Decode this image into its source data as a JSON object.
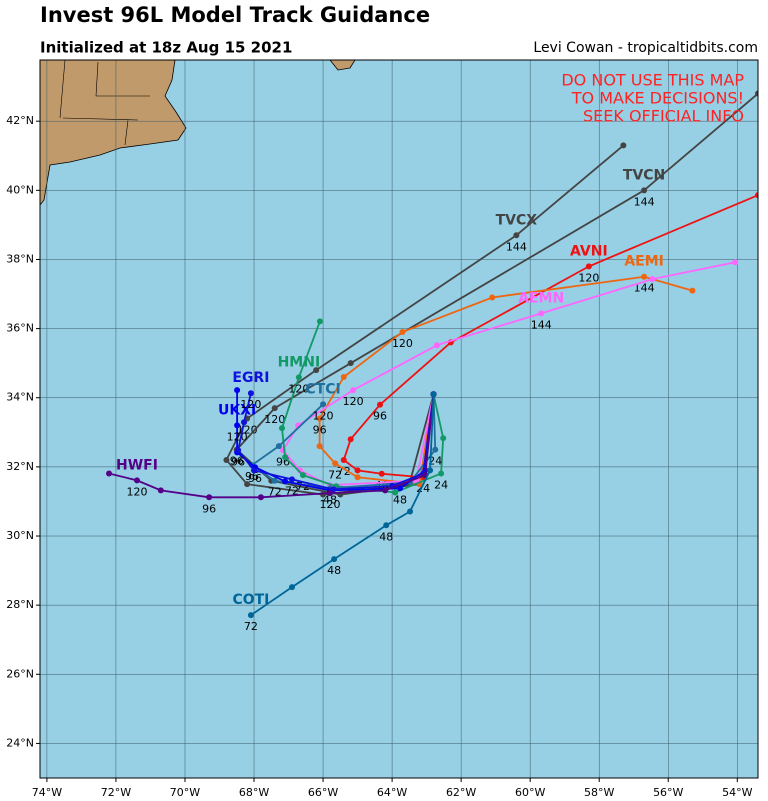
{
  "chart_data": {
    "type": "track-map",
    "title": "Invest 96L Model Track Guidance",
    "subtitle": "Initialized at 18z Aug 15 2021",
    "credit": "Levi Cowan - tropicaltidbits.com",
    "warning": [
      "DO NOT USE THIS MAP",
      "TO MAKE DECISIONS!",
      "SEEK OFFICIAL INFO"
    ],
    "xlim": [
      -74.2,
      -53.4
    ],
    "ylim": [
      23.0,
      43.77
    ],
    "xticks": [
      {
        "value": -74,
        "label": "74°W"
      },
      {
        "value": -72,
        "label": "72°W"
      },
      {
        "value": -70,
        "label": "70°W"
      },
      {
        "value": -68,
        "label": "68°W"
      },
      {
        "value": -66,
        "label": "66°W"
      },
      {
        "value": -64,
        "label": "64°W"
      },
      {
        "value": -62,
        "label": "62°W"
      },
      {
        "value": -60,
        "label": "60°W"
      },
      {
        "value": -58,
        "label": "58°W"
      },
      {
        "value": -56,
        "label": "56°W"
      },
      {
        "value": -54,
        "label": "54°W"
      }
    ],
    "yticks": [
      {
        "value": 24,
        "label": "24°N"
      },
      {
        "value": 26,
        "label": "26°N"
      },
      {
        "value": 28,
        "label": "28°N"
      },
      {
        "value": 30,
        "label": "30°N"
      },
      {
        "value": 32,
        "label": "32°N"
      },
      {
        "value": 34,
        "label": "34°N"
      },
      {
        "value": 36,
        "label": "36°N"
      },
      {
        "value": 38,
        "label": "38°N"
      },
      {
        "value": 40,
        "label": "40°N"
      },
      {
        "value": 42,
        "label": "42°N"
      }
    ],
    "grid": true,
    "tracks": [
      {
        "name": "TVCX",
        "color": "#444444",
        "points": [
          [
            -62.8,
            34.1
          ],
          [
            -63.5,
            31.5
          ],
          [
            -66.0,
            31.2
          ],
          [
            -68.2,
            31.5
          ],
          [
            -68.8,
            32.2
          ],
          [
            -68.2,
            33.4
          ],
          [
            -66.2,
            34.8
          ],
          [
            -60.4,
            38.7
          ],
          [
            -57.3,
            41.3
          ]
        ],
        "labels": [
          null,
          null,
          null,
          null,
          null,
          "120",
          null,
          "144",
          null
        ]
      },
      {
        "name": "TVCN",
        "color": "#444444",
        "points": [
          [
            -62.8,
            34.1
          ],
          [
            -63.2,
            31.5
          ],
          [
            -65.5,
            31.2
          ],
          [
            -67.5,
            31.6
          ],
          [
            -68.5,
            32.5
          ],
          [
            -67.4,
            33.7
          ],
          [
            -65.2,
            35.0
          ],
          [
            -56.7,
            40.0
          ],
          [
            -53.4,
            42.8
          ]
        ],
        "labels": [
          null,
          null,
          null,
          null,
          "96",
          "120",
          null,
          "144",
          null
        ]
      },
      {
        "name": "AVNI",
        "color": "#ee1111",
        "points": [
          [
            -62.8,
            34.1
          ],
          [
            -63.1,
            31.7
          ],
          [
            -64.3,
            31.8
          ],
          [
            -65.0,
            31.9
          ],
          [
            -65.4,
            32.2
          ],
          [
            -65.2,
            32.8
          ],
          [
            -64.35,
            33.8
          ],
          [
            -62.3,
            35.6
          ],
          [
            -58.3,
            37.8
          ],
          [
            -53.4,
            39.86
          ]
        ],
        "labels": [
          null,
          "24",
          "48",
          null,
          "72",
          null,
          "96",
          null,
          "120",
          null
        ]
      },
      {
        "name": "AEMI",
        "color": "#ee6611",
        "points": [
          [
            -62.8,
            34.1
          ],
          [
            -63.2,
            31.5
          ],
          [
            -65.0,
            31.7
          ],
          [
            -65.65,
            32.1
          ],
          [
            -66.1,
            32.6
          ],
          [
            -66.1,
            33.4
          ],
          [
            -65.4,
            34.6
          ],
          [
            -63.7,
            35.9
          ],
          [
            -61.1,
            36.9
          ],
          [
            -56.7,
            37.5
          ],
          [
            -55.3,
            37.1
          ]
        ],
        "labels": [
          null,
          null,
          null,
          "72",
          null,
          "96",
          null,
          "120",
          null,
          "144",
          null
        ]
      },
      {
        "name": "AEMN",
        "color": "#ff66ff",
        "points": [
          [
            -62.8,
            34.1
          ],
          [
            -63.3,
            31.6
          ],
          [
            -65.8,
            31.47
          ],
          [
            -66.67,
            31.9
          ],
          [
            -67.16,
            32.48
          ],
          [
            -66.72,
            33.2
          ],
          [
            -65.13,
            34.22
          ],
          [
            -62.7,
            35.52
          ],
          [
            -59.68,
            36.44
          ],
          [
            -56.46,
            37.43
          ],
          [
            -54.06,
            37.92
          ]
        ],
        "labels": [
          null,
          null,
          null,
          null,
          "96",
          null,
          "120",
          null,
          "144",
          null,
          null
        ]
      },
      {
        "name": "HMNI",
        "color": "#119966",
        "points": [
          [
            -62.8,
            34.1
          ],
          [
            -62.52,
            32.83
          ],
          [
            -62.58,
            31.81
          ],
          [
            -63.91,
            31.26
          ],
          [
            -65.62,
            31.44
          ],
          [
            -66.58,
            31.76
          ],
          [
            -67.1,
            32.28
          ],
          [
            -67.19,
            33.12
          ],
          [
            -66.7,
            34.59
          ],
          [
            -66.09,
            36.21
          ]
        ],
        "labels": [
          null,
          null,
          "24",
          null,
          null,
          "72",
          null,
          null,
          "120",
          null
        ]
      },
      {
        "name": "CTCI",
        "color": "#1f6f9f",
        "points": [
          [
            -62.8,
            34.1
          ],
          [
            -62.75,
            32.5
          ],
          [
            -63.48,
            31.55
          ],
          [
            -65.8,
            31.38
          ],
          [
            -67.4,
            31.6
          ],
          [
            -68.06,
            32.05
          ],
          [
            -67.28,
            32.6
          ],
          [
            -66.0,
            33.81
          ]
        ],
        "labels": [
          null,
          "24",
          null,
          "48",
          "72",
          "96",
          null,
          "120"
        ]
      },
      {
        "name": "UKXI",
        "color": "#0000ee",
        "points": [
          [
            -62.8,
            34.1
          ],
          [
            -63.04,
            31.9
          ],
          [
            -63.77,
            31.38
          ],
          [
            -65.8,
            31.32
          ],
          [
            -67.1,
            31.58
          ],
          [
            -67.97,
            31.99
          ],
          [
            -68.49,
            32.42
          ],
          [
            -68.49,
            33.2
          ],
          [
            -68.49,
            34.22
          ]
        ],
        "labels": [
          null,
          null,
          "48",
          null,
          null,
          "96",
          null,
          "120",
          null
        ]
      },
      {
        "name": "EGRI",
        "color": "#1111dd",
        "points": [
          [
            -62.8,
            34.1
          ],
          [
            -63.1,
            31.8
          ],
          [
            -64.0,
            31.45
          ],
          [
            -65.7,
            31.35
          ],
          [
            -66.9,
            31.64
          ],
          [
            -68.0,
            31.9
          ],
          [
            -68.46,
            32.48
          ],
          [
            -68.29,
            33.29
          ],
          [
            -68.09,
            34.13
          ]
        ],
        "labels": [
          null,
          null,
          null,
          null,
          "72",
          null,
          "96",
          null,
          "120"
        ]
      },
      {
        "name": "HWFI",
        "color": "#550088",
        "points": [
          [
            -62.8,
            34.1
          ],
          [
            -63.04,
            31.76
          ],
          [
            -64.2,
            31.32
          ],
          [
            -65.8,
            31.24
          ],
          [
            -67.8,
            31.12
          ],
          [
            -69.3,
            31.12
          ],
          [
            -70.7,
            31.32
          ],
          [
            -71.39,
            31.61
          ],
          [
            -72.2,
            31.81
          ]
        ],
        "labels": [
          null,
          null,
          null,
          "120",
          null,
          "96",
          null,
          "120",
          null
        ]
      },
      {
        "name": "COTI",
        "color": "#006699",
        "points": [
          [
            -62.8,
            34.1
          ],
          [
            -62.9,
            31.9
          ],
          [
            -63.48,
            30.71
          ],
          [
            -64.17,
            30.31
          ],
          [
            -65.68,
            29.33
          ],
          [
            -66.9,
            28.52
          ],
          [
            -68.09,
            27.71
          ]
        ],
        "labels": [
          null,
          null,
          null,
          "48",
          "48",
          null,
          "72"
        ]
      }
    ]
  }
}
